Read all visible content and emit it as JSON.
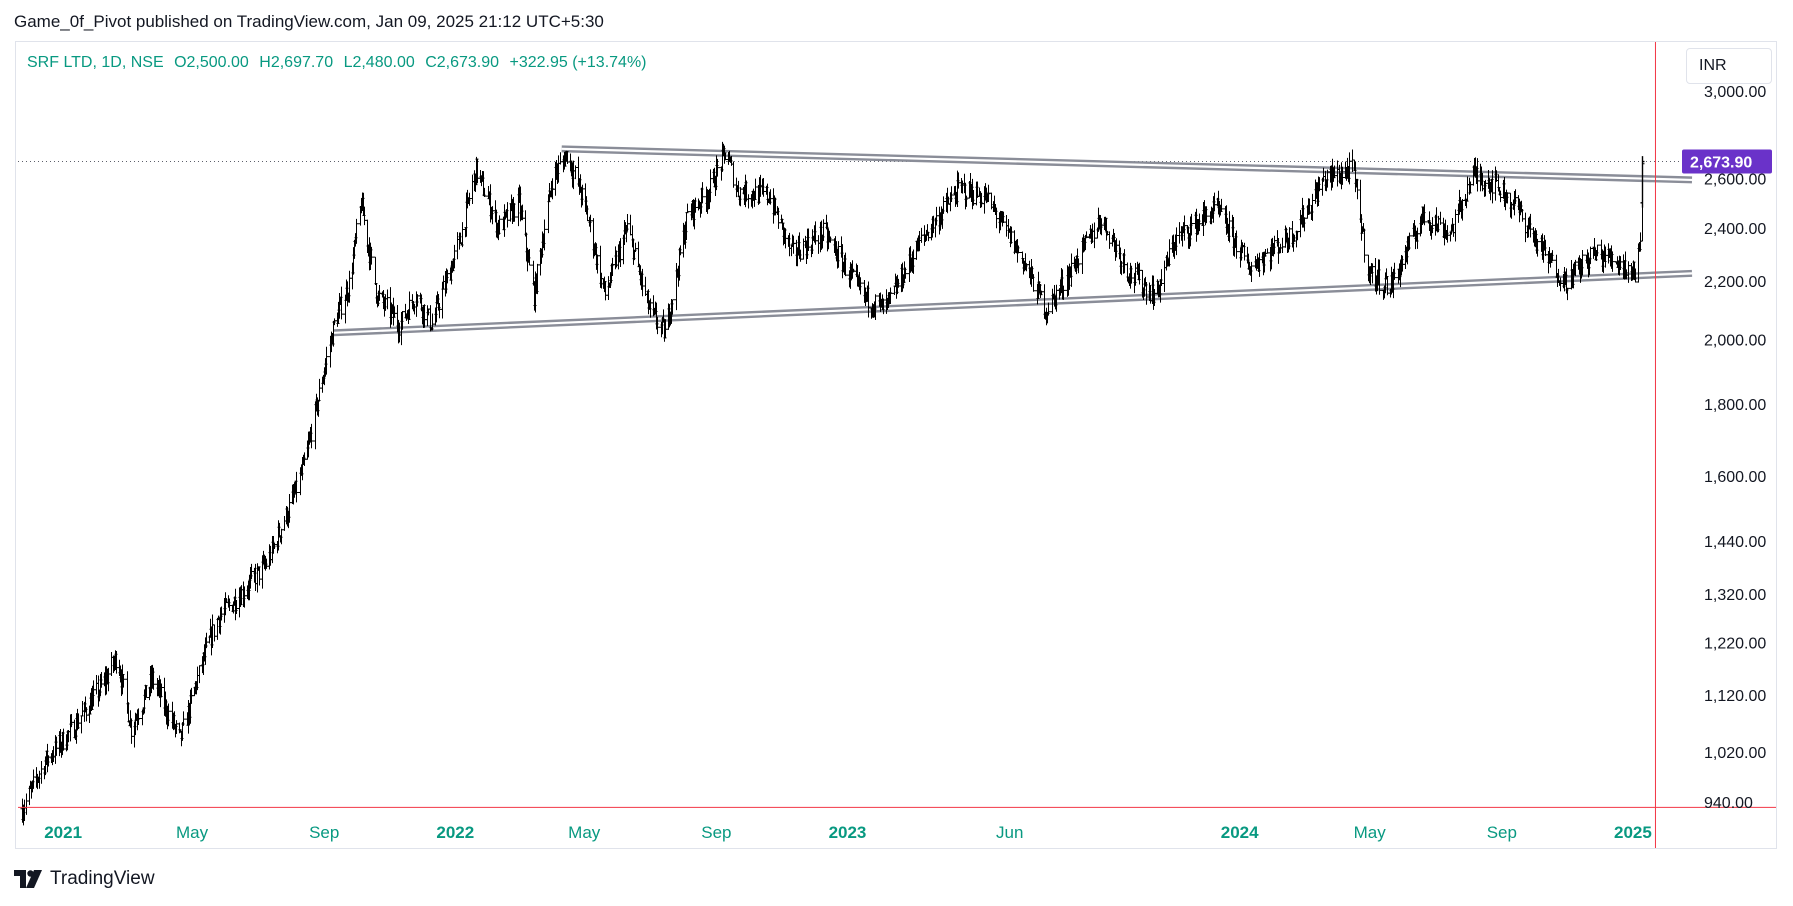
{
  "header": {
    "published_text": "Game_0f_Pivot published on TradingView.com, Jan 09, 2025 21:12 UTC+5:30"
  },
  "legend": {
    "symbol": "SRF LTD, 1D, NSE",
    "open": "O2,500.00",
    "high": "H2,697.70",
    "low": "L2,480.00",
    "close": "C2,673.90",
    "change": "+322.95 (+13.74%)"
  },
  "currency_button": {
    "label": "INR"
  },
  "brand": {
    "name": "TradingView"
  },
  "colors": {
    "legend_text": "#089981",
    "last_price_badge": "#6a32c9",
    "crosshair": "#f23645",
    "trendline": "#8a8d98",
    "bars": "#000000"
  },
  "chart_data": {
    "type": "ohlc",
    "title": "",
    "y_scale": "log",
    "ylim": [
      925,
      3250
    ],
    "y_ticks": [
      "940.00",
      "1,020.00",
      "1,120.00",
      "1,220.00",
      "1,320.00",
      "1,440.00",
      "1,600.00",
      "1,800.00",
      "2,000.00",
      "2,200.00",
      "2,400.00",
      "2,600.00",
      "3,000.00"
    ],
    "x_ticks": [
      {
        "label": "2021",
        "date": "2021-01-01",
        "year": true
      },
      {
        "label": "May",
        "date": "2021-05-01",
        "year": false
      },
      {
        "label": "Sep",
        "date": "2021-09-01",
        "year": false
      },
      {
        "label": "2022",
        "date": "2022-01-01",
        "year": true
      },
      {
        "label": "May",
        "date": "2022-05-01",
        "year": false
      },
      {
        "label": "Sep",
        "date": "2022-09-01",
        "year": false
      },
      {
        "label": "2023",
        "date": "2023-01-01",
        "year": true
      },
      {
        "label": "Jun",
        "date": "2023-06-01",
        "year": false
      },
      {
        "label": "2024",
        "date": "2024-01-01",
        "year": true
      },
      {
        "label": "May",
        "date": "2024-05-01",
        "year": false
      },
      {
        "label": "Sep",
        "date": "2024-09-01",
        "year": false
      },
      {
        "label": "2025",
        "date": "2025-01-01",
        "year": true
      }
    ],
    "x_range": [
      "2020-11-20",
      "2025-02-25"
    ],
    "last_price": {
      "value": 2673.9,
      "label": "2,673.90"
    },
    "crosshair": {
      "date": "2025-01-22",
      "price": 932
    },
    "price_path": [
      {
        "date": "2020-11-24",
        "price": 930
      },
      {
        "date": "2020-12-15",
        "price": 1005
      },
      {
        "date": "2021-01-10",
        "price": 1060
      },
      {
        "date": "2021-02-10",
        "price": 1150
      },
      {
        "date": "2021-02-20",
        "price": 1195
      },
      {
        "date": "2021-03-05",
        "price": 1060
      },
      {
        "date": "2021-03-25",
        "price": 1150
      },
      {
        "date": "2021-04-20",
        "price": 1040
      },
      {
        "date": "2021-05-10",
        "price": 1180
      },
      {
        "date": "2021-05-25",
        "price": 1270
      },
      {
        "date": "2021-06-15",
        "price": 1320
      },
      {
        "date": "2021-07-10",
        "price": 1390
      },
      {
        "date": "2021-08-05",
        "price": 1560
      },
      {
        "date": "2021-08-15",
        "price": 1650
      },
      {
        "date": "2021-08-25",
        "price": 1800
      },
      {
        "date": "2021-09-10",
        "price": 2050
      },
      {
        "date": "2021-09-25",
        "price": 2200
      },
      {
        "date": "2021-10-05",
        "price": 2500
      },
      {
        "date": "2021-10-20",
        "price": 2150
      },
      {
        "date": "2021-11-10",
        "price": 2050
      },
      {
        "date": "2021-11-25",
        "price": 2150
      },
      {
        "date": "2021-12-10",
        "price": 2050
      },
      {
        "date": "2022-01-05",
        "price": 2350
      },
      {
        "date": "2022-01-20",
        "price": 2640
      },
      {
        "date": "2022-02-10",
        "price": 2400
      },
      {
        "date": "2022-03-01",
        "price": 2500
      },
      {
        "date": "2022-03-15",
        "price": 2150
      },
      {
        "date": "2022-04-01",
        "price": 2600
      },
      {
        "date": "2022-04-15",
        "price": 2710
      },
      {
        "date": "2022-05-01",
        "price": 2500
      },
      {
        "date": "2022-05-20",
        "price": 2150
      },
      {
        "date": "2022-06-10",
        "price": 2400
      },
      {
        "date": "2022-06-30",
        "price": 2100
      },
      {
        "date": "2022-07-15",
        "price": 2020
      },
      {
        "date": "2022-08-05",
        "price": 2450
      },
      {
        "date": "2022-08-25",
        "price": 2550
      },
      {
        "date": "2022-09-10",
        "price": 2720
      },
      {
        "date": "2022-09-20",
        "price": 2550
      },
      {
        "date": "2022-10-20",
        "price": 2530
      },
      {
        "date": "2022-11-10",
        "price": 2300
      },
      {
        "date": "2022-12-10",
        "price": 2380
      },
      {
        "date": "2023-01-15",
        "price": 2150
      },
      {
        "date": "2023-02-05",
        "price": 2100
      },
      {
        "date": "2023-03-10",
        "price": 2350
      },
      {
        "date": "2023-04-15",
        "price": 2560
      },
      {
        "date": "2023-05-10",
        "price": 2520
      },
      {
        "date": "2023-06-10",
        "price": 2300
      },
      {
        "date": "2023-07-05",
        "price": 2100
      },
      {
        "date": "2023-07-25",
        "price": 2220
      },
      {
        "date": "2023-08-25",
        "price": 2440
      },
      {
        "date": "2023-09-20",
        "price": 2230
      },
      {
        "date": "2023-10-15",
        "price": 2150
      },
      {
        "date": "2023-11-01",
        "price": 2350
      },
      {
        "date": "2023-12-10",
        "price": 2480
      },
      {
        "date": "2024-01-10",
        "price": 2250
      },
      {
        "date": "2024-02-20",
        "price": 2380
      },
      {
        "date": "2024-03-20",
        "price": 2600
      },
      {
        "date": "2024-04-15",
        "price": 2640
      },
      {
        "date": "2024-04-30",
        "price": 2230
      },
      {
        "date": "2024-05-20",
        "price": 2180
      },
      {
        "date": "2024-06-20",
        "price": 2450
      },
      {
        "date": "2024-07-15",
        "price": 2380
      },
      {
        "date": "2024-08-05",
        "price": 2620
      },
      {
        "date": "2024-08-25",
        "price": 2580
      },
      {
        "date": "2024-09-15",
        "price": 2480
      },
      {
        "date": "2024-10-10",
        "price": 2300
      },
      {
        "date": "2024-10-30",
        "price": 2200
      },
      {
        "date": "2024-11-25",
        "price": 2300
      },
      {
        "date": "2024-12-15",
        "price": 2280
      },
      {
        "date": "2025-01-03",
        "price": 2230
      },
      {
        "date": "2025-01-08",
        "price": 2350
      },
      {
        "date": "2025-01-09",
        "price": 2673.9
      }
    ],
    "trendlines": [
      {
        "name": "upper",
        "from": {
          "date": "2022-04-10",
          "price": 2730
        },
        "to": {
          "date": "2025-02-25",
          "price": 2595
        }
      },
      {
        "name": "lower",
        "from": {
          "date": "2021-09-10",
          "price": 2022
        },
        "to": {
          "date": "2025-02-25",
          "price": 2228
        }
      }
    ]
  }
}
